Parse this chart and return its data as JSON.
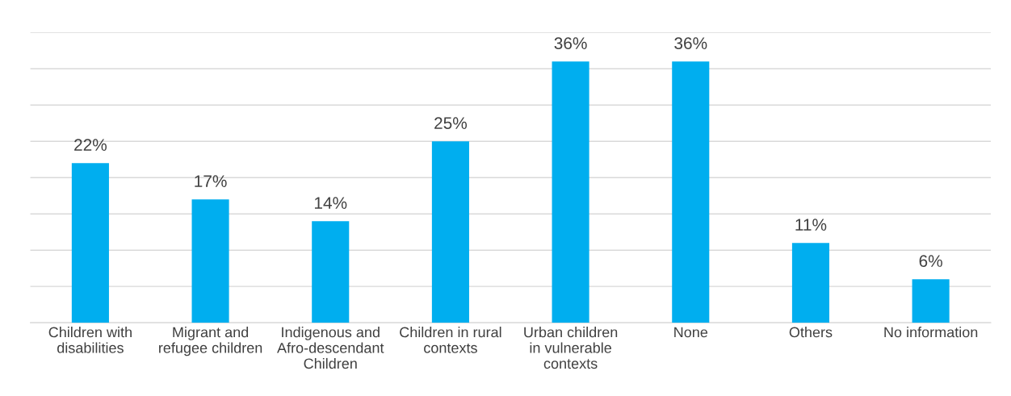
{
  "chart_data": {
    "type": "bar",
    "categories": [
      "Children with\ndisabilities",
      "Migrant and\nrefugee children",
      "Indigenous and\nAfro-descendant\nChildren",
      "Children in rural\ncontexts",
      "Urban children\nin vulnerable\ncontexts",
      "None",
      "Others",
      "No information"
    ],
    "values": [
      22,
      17,
      14,
      25,
      36,
      36,
      11,
      6
    ],
    "color": "#00aeef",
    "data_labels": true,
    "value_labels": [
      "22%",
      "17%",
      "14%",
      "25%",
      "36%",
      "36%",
      "11%",
      "6%"
    ],
    "ylim": [
      0,
      40
    ],
    "yticks": [
      {
        "value": 0,
        "label": null
      },
      {
        "value": 5,
        "label": null
      },
      {
        "value": 10,
        "label": null
      },
      {
        "value": 15,
        "label": null
      },
      {
        "value": 20,
        "label": null
      },
      {
        "value": 25,
        "label": null
      },
      {
        "value": 30,
        "label": null
      },
      {
        "value": 35,
        "label": null
      },
      {
        "value": 40,
        "label": null
      }
    ],
    "grid": "y",
    "tick_labels": "x",
    "legend": false
  }
}
